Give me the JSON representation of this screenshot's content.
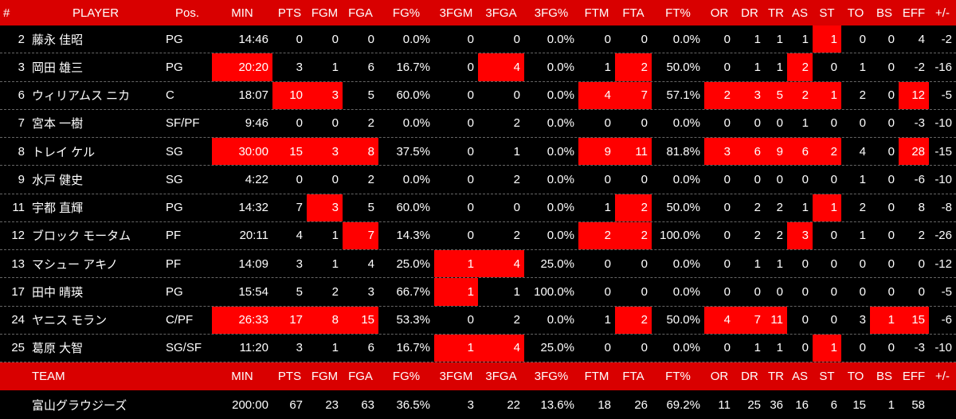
{
  "table": {
    "header": [
      "#",
      "PLAYER",
      "Pos.",
      "MIN",
      "PTS",
      "FGM",
      "FGA",
      "FG%",
      "3FGM",
      "3FGA",
      "3FG%",
      "FTM",
      "FTA",
      "FT%",
      "OR",
      "DR",
      "TR",
      "AS",
      "ST",
      "TO",
      "BS",
      "EFF",
      "+/-"
    ],
    "rows": [
      [
        "2",
        "藤永 佳昭",
        "PG",
        "14:46",
        "0",
        "0",
        "0",
        "0.0%",
        "0",
        "0",
        "0.0%",
        "0",
        "0",
        "0.0%",
        "0",
        "1",
        "1",
        "1",
        "1",
        "0",
        "0",
        "4",
        "-2"
      ],
      [
        "3",
        "岡田 雄三",
        "PG",
        "20:20",
        "3",
        "1",
        "6",
        "16.7%",
        "0",
        "4",
        "0.0%",
        "1",
        "2",
        "50.0%",
        "0",
        "1",
        "1",
        "2",
        "0",
        "1",
        "0",
        "-2",
        "-16"
      ],
      [
        "6",
        "ウィリアムス ニカ",
        "C",
        "18:07",
        "10",
        "3",
        "5",
        "60.0%",
        "0",
        "0",
        "0.0%",
        "4",
        "7",
        "57.1%",
        "2",
        "3",
        "5",
        "2",
        "1",
        "2",
        "0",
        "12",
        "-5"
      ],
      [
        "7",
        "宮本 一樹",
        "SF/PF",
        "9:46",
        "0",
        "0",
        "2",
        "0.0%",
        "0",
        "2",
        "0.0%",
        "0",
        "0",
        "0.0%",
        "0",
        "0",
        "0",
        "1",
        "0",
        "0",
        "0",
        "-3",
        "-10"
      ],
      [
        "8",
        "トレイ ケル",
        "SG",
        "30:00",
        "15",
        "3",
        "8",
        "37.5%",
        "0",
        "1",
        "0.0%",
        "9",
        "11",
        "81.8%",
        "3",
        "6",
        "9",
        "6",
        "2",
        "4",
        "0",
        "28",
        "-15"
      ],
      [
        "9",
        "水戸 健史",
        "SG",
        "4:22",
        "0",
        "0",
        "2",
        "0.0%",
        "0",
        "2",
        "0.0%",
        "0",
        "0",
        "0.0%",
        "0",
        "0",
        "0",
        "0",
        "0",
        "1",
        "0",
        "-6",
        "-10"
      ],
      [
        "11",
        "宇都 直輝",
        "PG",
        "14:32",
        "7",
        "3",
        "5",
        "60.0%",
        "0",
        "0",
        "0.0%",
        "1",
        "2",
        "50.0%",
        "0",
        "2",
        "2",
        "1",
        "1",
        "2",
        "0",
        "8",
        "-8"
      ],
      [
        "12",
        "ブロック モータム",
        "PF",
        "20:11",
        "4",
        "1",
        "7",
        "14.3%",
        "0",
        "2",
        "0.0%",
        "2",
        "2",
        "100.0%",
        "0",
        "2",
        "2",
        "3",
        "0",
        "1",
        "0",
        "2",
        "-26"
      ],
      [
        "13",
        "マシュー アキノ",
        "PF",
        "14:09",
        "3",
        "1",
        "4",
        "25.0%",
        "1",
        "4",
        "25.0%",
        "0",
        "0",
        "0.0%",
        "0",
        "1",
        "1",
        "0",
        "0",
        "0",
        "0",
        "0",
        "-12"
      ],
      [
        "17",
        "田中 晴瑛",
        "PG",
        "15:54",
        "5",
        "2",
        "3",
        "66.7%",
        "1",
        "1",
        "100.0%",
        "0",
        "0",
        "0.0%",
        "0",
        "0",
        "0",
        "0",
        "0",
        "0",
        "0",
        "0",
        "-5"
      ],
      [
        "24",
        "ヤニス モラン",
        "C/PF",
        "26:33",
        "17",
        "8",
        "15",
        "53.3%",
        "0",
        "2",
        "0.0%",
        "1",
        "2",
        "50.0%",
        "4",
        "7",
        "11",
        "0",
        "0",
        "3",
        "1",
        "15",
        "-6"
      ],
      [
        "25",
        "葛原 大智",
        "SG/SF",
        "11:20",
        "3",
        "1",
        "6",
        "16.7%",
        "1",
        "4",
        "25.0%",
        "0",
        "0",
        "0.0%",
        "0",
        "1",
        "1",
        "0",
        "1",
        "0",
        "0",
        "-3",
        "-10"
      ]
    ],
    "team_header": {
      "label": "TEAM",
      "columns": [
        "MIN",
        "PTS",
        "FGM",
        "FGA",
        "FG%",
        "3FGM",
        "3FGA",
        "3FG%",
        "FTM",
        "FTA",
        "FT%",
        "OR",
        "DR",
        "TR",
        "AS",
        "ST",
        "TO",
        "BS",
        "EFF",
        "+/-"
      ]
    },
    "team_row": {
      "name": "富山グラウジーズ",
      "values": [
        "200:00",
        "67",
        "23",
        "63",
        "36.5%",
        "3",
        "22",
        "13.6%",
        "18",
        "26",
        "69.2%",
        "11",
        "25",
        "36",
        "16",
        "6",
        "15",
        "1",
        "58"
      ]
    }
  }
}
